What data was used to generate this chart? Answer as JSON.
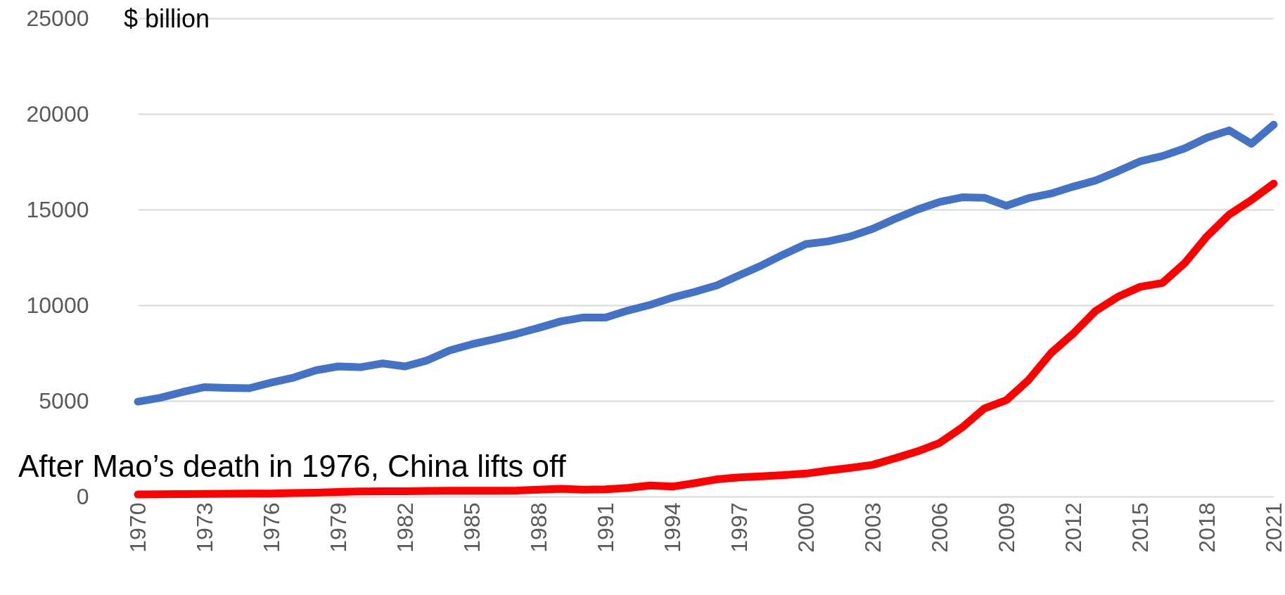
{
  "chart_data": {
    "type": "line",
    "ylabel": "$ billion",
    "annotations": [
      "After Mao’s death in 1976, China lifts off"
    ],
    "x": [
      1970,
      1971,
      1972,
      1973,
      1974,
      1975,
      1976,
      1977,
      1978,
      1979,
      1980,
      1981,
      1982,
      1983,
      1984,
      1985,
      1986,
      1987,
      1988,
      1989,
      1990,
      1991,
      1992,
      1993,
      1994,
      1995,
      1996,
      1997,
      1998,
      1999,
      2000,
      2001,
      2002,
      2003,
      2004,
      2005,
      2006,
      2007,
      2008,
      2009,
      2010,
      2011,
      2012,
      2013,
      2014,
      2015,
      2016,
      2017,
      2018,
      2019,
      2020,
      2021
    ],
    "series": [
      {
        "color": "#4472c4",
        "values": [
          4960,
          5160,
          5460,
          5720,
          5680,
          5660,
          5960,
          6220,
          6600,
          6800,
          6760,
          6960,
          6800,
          7120,
          7640,
          7960,
          8220,
          8500,
          8820,
          9160,
          9360,
          9360,
          9720,
          10020,
          10400,
          10700,
          11040,
          11560,
          12080,
          12660,
          13200,
          13340,
          13600,
          14000,
          14520,
          15000,
          15400,
          15640,
          15620,
          15200,
          15600,
          15840,
          16200,
          16520,
          17000,
          17520,
          17800,
          18200,
          18760,
          19140,
          18440,
          19440
        ]
      },
      {
        "color": "#ff0000",
        "values": [
          110,
          120,
          130,
          140,
          150,
          160,
          160,
          180,
          200,
          240,
          270,
          280,
          280,
          290,
          300,
          300,
          300,
          310,
          360,
          400,
          360,
          380,
          450,
          580,
          520,
          700,
          900,
          1000,
          1060,
          1120,
          1200,
          1360,
          1500,
          1660,
          2000,
          2360,
          2800,
          3600,
          4600,
          5040,
          6100,
          7500,
          8520,
          9700,
          10440,
          10960,
          11160,
          12200,
          13600,
          14740,
          15500,
          16360
        ]
      }
    ],
    "xlim": [
      1970,
      2021
    ],
    "xticks": [
      1970,
      1973,
      1976,
      1979,
      1982,
      1985,
      1988,
      1991,
      1994,
      1997,
      2000,
      2003,
      2006,
      2009,
      2012,
      2015,
      2018,
      2021
    ],
    "ylim": [
      0,
      25000
    ],
    "yticks": [
      0,
      5000,
      10000,
      15000,
      20000,
      25000
    ],
    "grid": "y",
    "marker": "none",
    "line_style": "solid"
  }
}
